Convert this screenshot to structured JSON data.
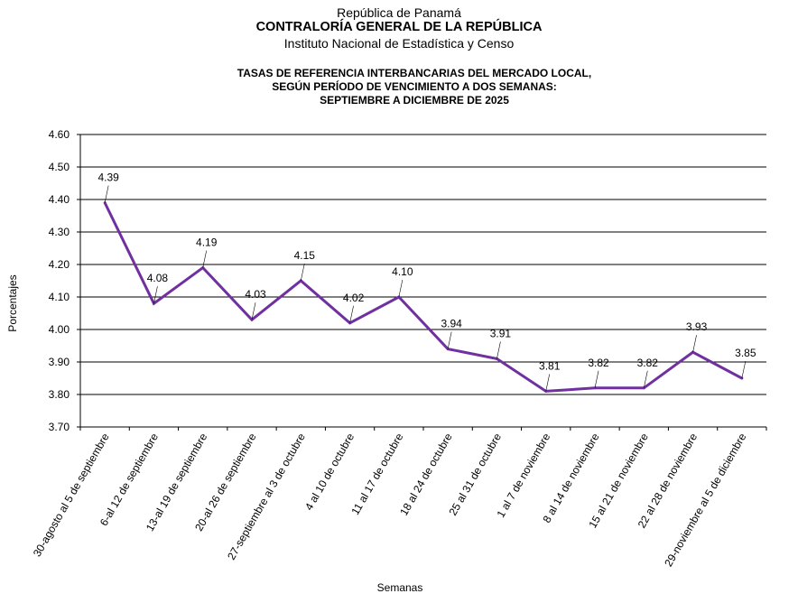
{
  "header": {
    "line1": "República de Panamá",
    "line2": "CONTRALORÍA GENERAL DE LA REPÚBLICA",
    "line3": "Instituto Nacional de Estadística y Censo"
  },
  "colors": {
    "series": "#7030a0",
    "grid": "#000000",
    "text": "#000000"
  },
  "chart_data": {
    "type": "line",
    "title_lines": [
      "TASAS DE REFERENCIA  INTERBANCARIAS  DEL MERCADO LOCAL,",
      "SEGÚN PERÍODO DE VENCIMIENTO  A DOS SEMANAS:",
      "SEPTIEMBRE  A DICIEMBRE DE 2025"
    ],
    "xlabel": "Semanas",
    "ylabel": "Porcentajes",
    "ylim": [
      3.7,
      4.6
    ],
    "yticks": [
      "3.70",
      "3.80",
      "3.90",
      "4.00",
      "4.10",
      "4.20",
      "4.30",
      "4.40",
      "4.50",
      "4.60"
    ],
    "grid": true,
    "categories": [
      "30-agosto al 5 de septiembre",
      "6-al 12 de septiembre",
      "13-al 19 de septiembre",
      "20-al 26 de septiembre",
      "27-septiembre al 3 de octubre",
      "4 al 10 de octubre",
      "11 al 17 de octubre",
      "18 al 24 de octubre",
      "25 al 31 de octubre",
      "1 al 7 de noviembre",
      "8 al 14 de noviembre",
      "15 al 21 de noviembre",
      "22 al 28 de noviembre",
      "29-noviembre al 5 de diciembre"
    ],
    "values": [
      4.39,
      4.08,
      4.19,
      4.03,
      4.15,
      4.02,
      4.1,
      3.94,
      3.91,
      3.81,
      3.82,
      3.82,
      3.93,
      3.85
    ],
    "data_labels": [
      "4.39",
      "4.08",
      "4.19",
      "4.03",
      "4.15",
      "4.02",
      "4.10",
      "3.94",
      "3.91",
      "3.81",
      "3.82",
      "3.82",
      "3.93",
      "3.85"
    ]
  }
}
